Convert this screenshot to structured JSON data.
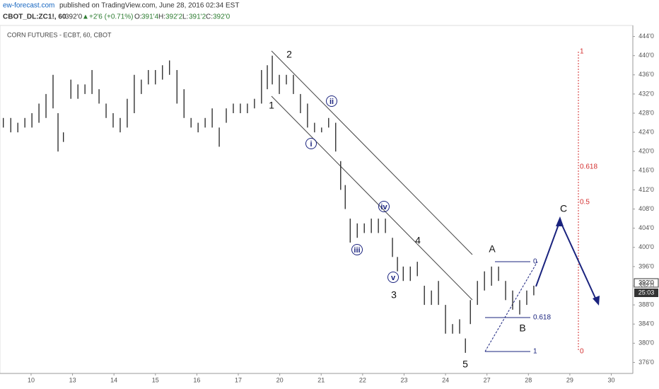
{
  "header": {
    "site": "ew-forecast.com",
    "published": "published on TradingView.com, June 28, 2016 02:34 EST",
    "symbol": "CBOT_DL:ZC1!, 60",
    "price": "392'0",
    "arrow": "▲",
    "change": "+2'6 (+0.71%)",
    "o_label": "O:",
    "o": "391'4",
    "h_label": "H:",
    "h": "392'2",
    "l_label": "L:",
    "l": "391'2",
    "c_label": "C:",
    "c": "392'0"
  },
  "chart_data": {
    "type": "ohlc",
    "title": "CORN FUTURES - ECBT, 60, CBOT",
    "color": "#222222",
    "x": [
      -0.67,
      -0.49,
      -0.32,
      -0.15,
      0.02,
      0.19,
      0.36,
      0.53,
      0.65,
      0.78,
      0.96,
      1.13,
      1.3,
      1.47,
      1.64,
      1.81,
      1.98,
      2.15,
      2.32,
      2.49,
      2.66,
      2.83,
      3.0,
      3.17,
      3.34,
      3.52,
      3.69,
      3.86,
      4.03,
      4.2,
      4.37,
      4.54,
      4.71,
      4.88,
      5.05,
      5.22,
      5.39,
      5.56,
      5.7,
      5.82,
      5.99,
      6.16,
      6.33,
      6.5,
      6.67,
      6.84,
      7.01,
      7.18,
      7.35,
      7.47,
      7.58,
      7.7,
      7.87,
      8.04,
      8.21,
      8.38,
      8.55,
      8.72,
      8.84,
      8.98,
      9.15,
      9.32,
      9.49,
      9.66,
      9.83,
      10.0,
      10.17,
      10.34,
      10.48,
      10.6,
      10.77,
      10.94,
      11.11,
      11.28,
      11.45,
      11.62,
      11.79,
      11.96,
      12.13
    ],
    "high": [
      427,
      427,
      426,
      427,
      428,
      430,
      432,
      436,
      428,
      424,
      435,
      434,
      434,
      437,
      433,
      430,
      428,
      427,
      431,
      436,
      435,
      437,
      437,
      438,
      439,
      437,
      433,
      427,
      426,
      427,
      429,
      425,
      429,
      430,
      430,
      430,
      431,
      437,
      438,
      440,
      436,
      436,
      436,
      432,
      430,
      426,
      425,
      427,
      426,
      418,
      413,
      406,
      405,
      405,
      406,
      406,
      406,
      402,
      398,
      396,
      396,
      397,
      392,
      391,
      393,
      388,
      384,
      385,
      381,
      389,
      393,
      395,
      396,
      396,
      393,
      391,
      389,
      391,
      392
    ],
    "low": [
      425,
      424,
      424,
      425,
      425,
      426,
      427,
      429,
      420,
      422,
      431,
      431,
      432,
      432,
      430,
      427,
      425,
      424,
      425,
      428,
      432,
      434,
      434,
      435,
      436,
      430,
      427,
      425,
      424,
      425,
      425,
      421,
      426,
      428,
      428,
      428,
      429,
      430,
      433,
      434,
      432,
      434,
      432,
      428,
      425,
      424,
      424,
      425,
      420,
      412,
      408,
      401,
      402,
      403,
      403,
      403,
      403,
      398,
      395,
      393,
      393,
      394,
      388,
      388,
      388,
      382,
      382,
      382,
      378,
      384,
      388,
      391,
      392,
      393,
      389,
      387,
      386,
      388,
      390
    ],
    "xlim": [
      -0.75,
      14.52
    ],
    "ylim": [
      446.3,
      373.7
    ],
    "xticks": [
      {
        "value": 0,
        "label": "10"
      },
      {
        "value": 1,
        "label": "13"
      },
      {
        "value": 2,
        "label": "14"
      },
      {
        "value": 3,
        "label": "15"
      },
      {
        "value": 4,
        "label": "16"
      },
      {
        "value": 5,
        "label": "17"
      },
      {
        "value": 6,
        "label": "20"
      },
      {
        "value": 7,
        "label": "21"
      },
      {
        "value": 8,
        "label": "22"
      },
      {
        "value": 9,
        "label": "23"
      },
      {
        "value": 10,
        "label": "24"
      },
      {
        "value": 11,
        "label": "27"
      },
      {
        "value": 12,
        "label": "28"
      },
      {
        "value": 13,
        "label": "29"
      },
      {
        "value": 14,
        "label": "30"
      }
    ],
    "yticks": [
      {
        "value": 444,
        "label": "444'0"
      },
      {
        "value": 440,
        "label": "440'0"
      },
      {
        "value": 436,
        "label": "436'0"
      },
      {
        "value": 432,
        "label": "432'0"
      },
      {
        "value": 428,
        "label": "428'0"
      },
      {
        "value": 424,
        "label": "424'0"
      },
      {
        "value": 420,
        "label": "420'0"
      },
      {
        "value": 416,
        "label": "416'0"
      },
      {
        "value": 412,
        "label": "412'0"
      },
      {
        "value": 408,
        "label": "408'0"
      },
      {
        "value": 404,
        "label": "404'0"
      },
      {
        "value": 400,
        "label": "400'0"
      },
      {
        "value": 396,
        "label": "396'0"
      },
      {
        "value": 392,
        "label": "392'0"
      },
      {
        "value": 388,
        "label": "388'0"
      },
      {
        "value": 384,
        "label": "384'0"
      },
      {
        "value": 380,
        "label": "380'0"
      },
      {
        "value": 376,
        "label": "376'0"
      }
    ],
    "last_price": "392'0",
    "countdown": "25:03",
    "waves": [
      "1",
      "2",
      "3",
      "4",
      "5",
      "A",
      "B",
      "C"
    ],
    "subwaves": [
      "i",
      "ii",
      "iii",
      "iv",
      "v"
    ],
    "fib_red": [
      "1",
      "0.618",
      "0.5",
      "0"
    ],
    "fib_blue": [
      "0",
      "0.618",
      "1"
    ]
  }
}
